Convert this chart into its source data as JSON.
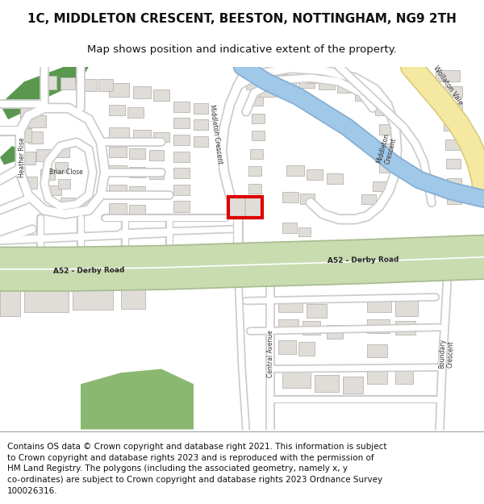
{
  "title": "1C, MIDDLETON CRESCENT, BEESTON, NOTTINGHAM, NG9 2TH",
  "subtitle": "Map shows position and indicative extent of the property.",
  "footer_lines": [
    "Contains OS data © Crown copyright and database right 2021. This information is subject",
    "to Crown copyright and database rights 2023 and is reproduced with the permission of",
    "HM Land Registry. The polygons (including the associated geometry, namely x, y",
    "co-ordinates) are subject to Crown copyright and database rights 2023 Ordnance Survey",
    "100026316."
  ],
  "map_bg": "#ffffff",
  "road_fill": "#ffffff",
  "road_outline": "#cccccc",
  "building_fill": "#e0ddd8",
  "building_outline": "#b8b5b0",
  "green_fill": "#7ab870",
  "green_fill2": "#c8ddb0",
  "a52_fill": "#c8dcb0",
  "a52_outline": "#a8bc90",
  "blue_river": "#a0c8e8",
  "yellow_road": "#f5e8a0",
  "yellow_outline": "#d8cc80",
  "red_highlight": "#dd0000",
  "text_dark": "#333333",
  "title_fontsize": 11,
  "subtitle_fontsize": 9.5,
  "footer_fontsize": 7.5,
  "figsize": [
    6.0,
    6.25
  ],
  "dpi": 100
}
